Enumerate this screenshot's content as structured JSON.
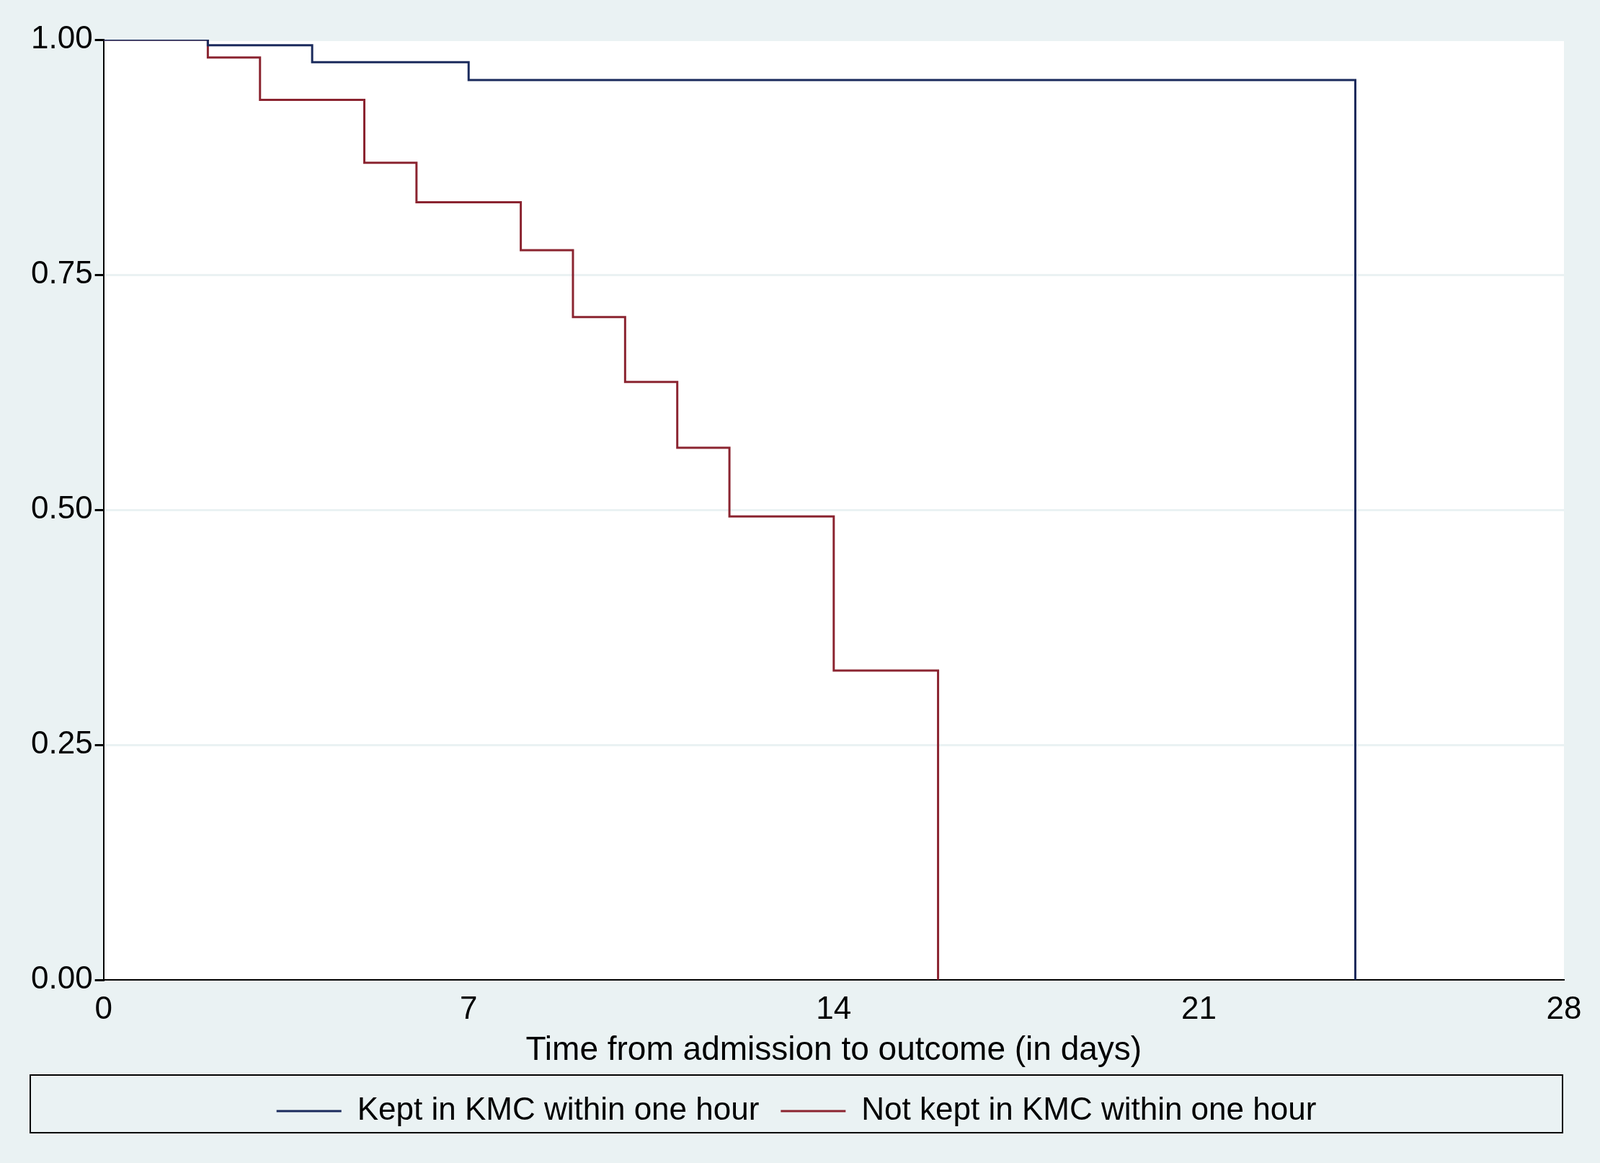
{
  "chart_data": {
    "type": "line",
    "x_label": "Time from admission to outcome (in days)",
    "x": [
      0,
      2,
      3,
      4,
      5,
      6,
      7,
      8,
      9,
      10,
      11,
      12,
      14,
      16,
      24
    ],
    "series": [
      {
        "name": "Kept in KMC within one hour",
        "color": "#1a2a5c",
        "line_style": "step",
        "values": [
          1.0,
          0.994,
          0.994,
          0.976,
          0.976,
          0.976,
          0.957,
          0.957,
          0.957,
          0.957,
          0.957,
          0.957,
          0.957,
          0.957,
          0.0
        ]
      },
      {
        "name": "Not kept in KMC within one hour",
        "color": "#8b2430",
        "line_style": "step",
        "values": [
          1.0,
          0.981,
          0.936,
          0.936,
          0.869,
          0.827,
          0.827,
          0.776,
          0.705,
          0.636,
          0.566,
          0.493,
          0.329,
          0.0,
          null
        ]
      }
    ],
    "xlim": [
      0,
      28
    ],
    "xticks": [
      0,
      7,
      14,
      21,
      28
    ],
    "ylim": [
      0,
      1
    ],
    "yticks": [
      {
        "value": 0,
        "label": "0.00"
      },
      {
        "value": 0.25,
        "label": "0.25"
      },
      {
        "value": 0.5,
        "label": "0.50"
      },
      {
        "value": 0.75,
        "label": "0.75"
      },
      {
        "value": 1,
        "label": "1.00"
      }
    ],
    "grid": "y",
    "legend": "bottom"
  }
}
